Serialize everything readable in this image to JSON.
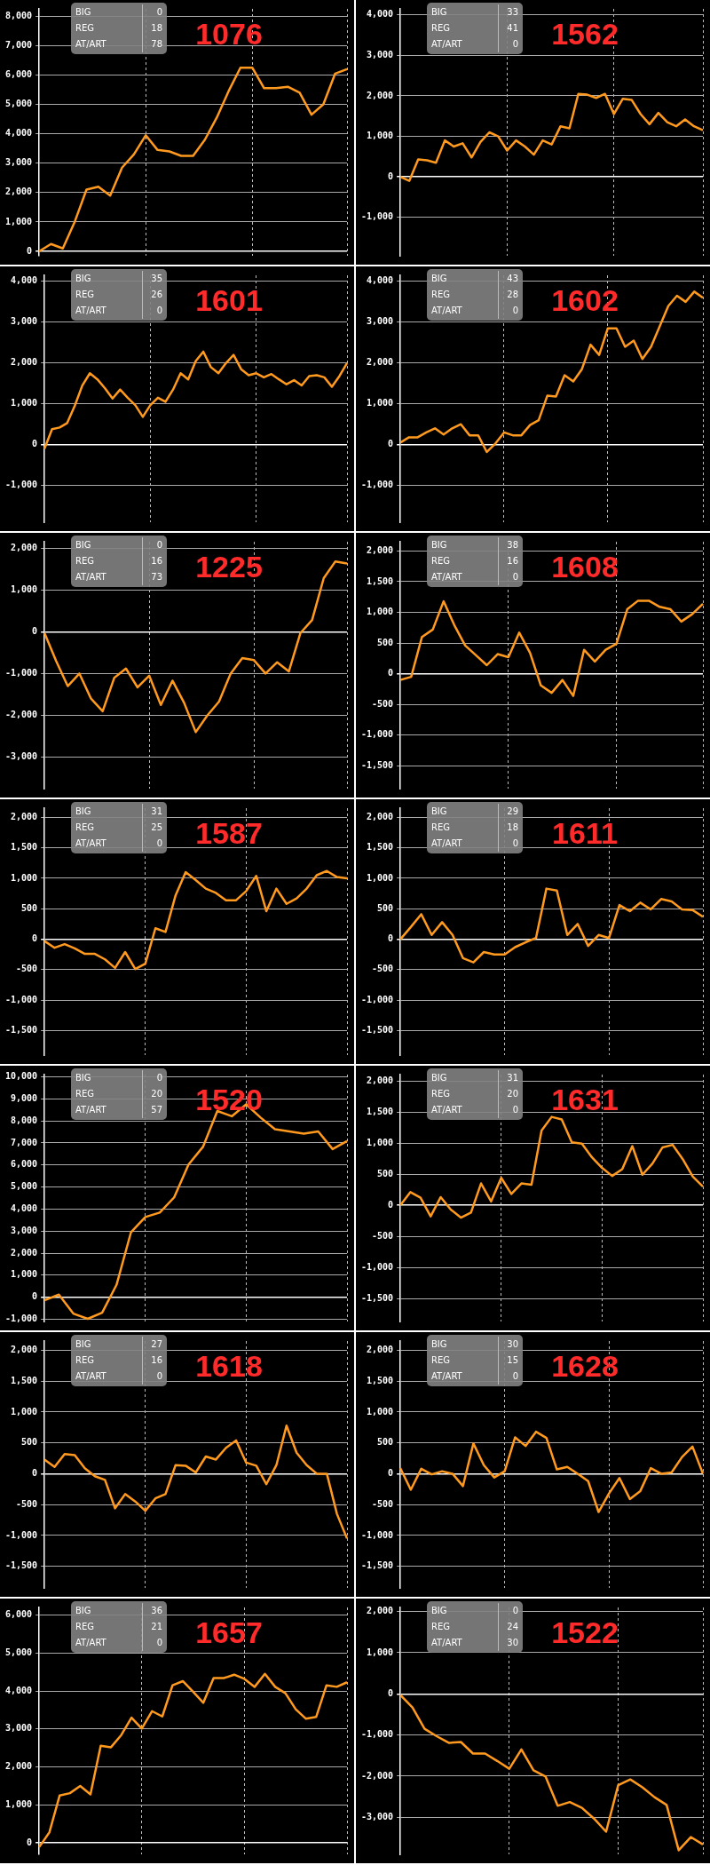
{
  "chart_data": [
    {
      "type": "line",
      "title": "1076",
      "annotations": [
        "BIG",
        "0",
        "REG",
        "18",
        "AT/ART",
        "78"
      ],
      "categories": [
        null,
        null,
        null,
        null,
        null,
        null,
        null,
        null,
        null,
        null,
        null,
        null,
        null,
        null,
        null,
        null,
        null,
        null,
        null,
        null,
        null,
        null,
        null,
        null,
        null,
        null,
        null
      ],
      "series": [
        {
          "color": "#ff9a1f",
          "values": [
            0,
            250,
            100,
            1000,
            2100,
            2200,
            1900,
            2850,
            3300,
            3950,
            3450,
            3400,
            3250,
            3250,
            3800,
            4550,
            5450,
            6250,
            6250,
            5550,
            5550,
            5600,
            5400,
            4650,
            5000,
            6050,
            6200
          ]
        }
      ],
      "ylim": [
        -150,
        8250
      ],
      "yticks": [
        0,
        {
          "value": 1000,
          "label": "1,000"
        },
        {
          "value": 2000,
          "label": "2,000"
        },
        {
          "value": 3000,
          "label": "3,000"
        },
        {
          "value": 4000,
          "label": "4,000"
        },
        {
          "value": 5000,
          "label": "5,000"
        },
        {
          "value": 6000,
          "label": "6,000"
        },
        {
          "value": 7000,
          "label": "7,000"
        },
        {
          "value": 8000,
          "label": "8,000"
        }
      ],
      "grid": true,
      "tick_labels": "y"
    },
    {
      "type": "line",
      "title": "1562",
      "annotations": [
        "BIG",
        "33",
        "REG",
        "41",
        "AT/ART",
        "0"
      ],
      "categories": [
        null,
        null,
        null,
        null,
        null,
        null,
        null,
        null,
        null,
        null,
        null,
        null,
        null,
        null,
        null,
        null,
        null,
        null,
        null,
        null,
        null,
        null,
        null,
        null,
        null,
        null,
        null,
        null,
        null,
        null,
        null,
        null,
        null,
        null,
        null
      ],
      "series": [
        {
          "color": "#ff9a1f",
          "values": [
            0,
            -100,
            430,
            410,
            350,
            900,
            750,
            830,
            480,
            860,
            1100,
            1000,
            650,
            900,
            750,
            550,
            900,
            800,
            1250,
            1200,
            2050,
            2030,
            1950,
            2050,
            1550,
            1930,
            1900,
            1550,
            1300,
            1580,
            1350,
            1250,
            1420,
            1250,
            1150
          ]
        }
      ],
      "ylim": [
        -1950,
        4150
      ],
      "yticks": [
        {
          "value": -1000,
          "label": "-1,000"
        },
        0,
        {
          "value": 1000,
          "label": "1,000"
        },
        {
          "value": 2000,
          "label": "2,000"
        },
        {
          "value": 3000,
          "label": "3,000"
        },
        {
          "value": 4000,
          "label": "4,000"
        }
      ],
      "grid": true,
      "tick_labels": "y"
    },
    {
      "type": "line",
      "title": "1601",
      "annotations": [
        "BIG",
        "35",
        "REG",
        "26",
        "AT/ART",
        "0"
      ],
      "categories": [
        null,
        null,
        null,
        null,
        null,
        null,
        null,
        null,
        null,
        null,
        null,
        null,
        null,
        null,
        null,
        null,
        null,
        null,
        null,
        null,
        null,
        null,
        null,
        null,
        null,
        null,
        null,
        null,
        null,
        null,
        null,
        null,
        null,
        null,
        null,
        null,
        null,
        null,
        null,
        null,
        null
      ],
      "series": [
        {
          "color": "#ff9a1f",
          "values": [
            -100,
            380,
            420,
            530,
            950,
            1450,
            1750,
            1600,
            1380,
            1130,
            1350,
            1150,
            970,
            680,
            970,
            1150,
            1050,
            1350,
            1750,
            1600,
            2050,
            2280,
            1900,
            1750,
            2000,
            2200,
            1850,
            1700,
            1750,
            1650,
            1730,
            1600,
            1480,
            1580,
            1450,
            1680,
            1700,
            1650,
            1420,
            1680,
            2000
          ]
        }
      ],
      "ylim": [
        -1900,
        4150
      ],
      "yticks": [
        {
          "value": -1000,
          "label": "-1,000"
        },
        0,
        {
          "value": 1000,
          "label": "1,000"
        },
        {
          "value": 2000,
          "label": "2,000"
        },
        {
          "value": 3000,
          "label": "3,000"
        },
        {
          "value": 4000,
          "label": "4,000"
        }
      ],
      "grid": true,
      "tick_labels": "y"
    },
    {
      "type": "line",
      "title": "1602",
      "annotations": [
        "BIG",
        "43",
        "REG",
        "28",
        "AT/ART",
        "0"
      ],
      "categories": [
        null,
        null,
        null,
        null,
        null,
        null,
        null,
        null,
        null,
        null,
        null,
        null,
        null,
        null,
        null,
        null,
        null,
        null,
        null,
        null,
        null,
        null,
        null,
        null,
        null,
        null,
        null,
        null,
        null,
        null,
        null,
        null,
        null,
        null,
        null,
        null
      ],
      "series": [
        {
          "color": "#ff9a1f",
          "values": [
            50,
            180,
            180,
            300,
            400,
            250,
            400,
            500,
            230,
            230,
            -180,
            30,
            300,
            230,
            230,
            480,
            600,
            1200,
            1180,
            1700,
            1550,
            1850,
            2450,
            2200,
            2850,
            2850,
            2400,
            2550,
            2100,
            2400,
            2900,
            3400,
            3650,
            3500,
            3750,
            3600
          ]
        }
      ],
      "ylim": [
        -1900,
        4150
      ],
      "yticks": [
        {
          "value": -1000,
          "label": "-1,000"
        },
        0,
        {
          "value": 1000,
          "label": "1,000"
        },
        {
          "value": 2000,
          "label": "2,000"
        },
        {
          "value": 3000,
          "label": "3,000"
        },
        {
          "value": 4000,
          "label": "4,000"
        }
      ],
      "grid": true,
      "tick_labels": "y"
    },
    {
      "type": "line",
      "title": "1225",
      "annotations": [
        "BIG",
        "0",
        "REG",
        "16",
        "AT/ART",
        "73"
      ],
      "categories": [
        null,
        null,
        null,
        null,
        null,
        null,
        null,
        null,
        null,
        null,
        null,
        null,
        null,
        null,
        null,
        null,
        null,
        null,
        null,
        null,
        null,
        null,
        null,
        null,
        null,
        null,
        null
      ],
      "series": [
        {
          "color": "#ff9a1f",
          "values": [
            -30,
            -700,
            -1300,
            -1000,
            -1600,
            -1900,
            -1100,
            -880,
            -1330,
            -1050,
            -1750,
            -1170,
            -1700,
            -2400,
            -2000,
            -1670,
            -1000,
            -630,
            -680,
            -1000,
            -730,
            -950,
            -30,
            280,
            1280,
            1680,
            1630
          ]
        }
      ],
      "ylim": [
        -3750,
        2150
      ],
      "yticks": [
        {
          "value": -3000,
          "label": "-3,000"
        },
        {
          "value": -2000,
          "label": "-2,000"
        },
        {
          "value": -1000,
          "label": "-1,000"
        },
        0,
        {
          "value": 1000,
          "label": "1,000"
        },
        {
          "value": 2000,
          "label": "2,000"
        }
      ],
      "grid": true,
      "tick_labels": "y"
    },
    {
      "type": "line",
      "title": "1608",
      "annotations": [
        "BIG",
        "38",
        "REG",
        "16",
        "AT/ART",
        "0"
      ],
      "categories": [
        null,
        null,
        null,
        null,
        null,
        null,
        null,
        null,
        null,
        null,
        null,
        null,
        null,
        null,
        null,
        null,
        null,
        null,
        null,
        null,
        null,
        null,
        null,
        null,
        null,
        null,
        null,
        null,
        null
      ],
      "series": [
        {
          "color": "#ff9a1f",
          "values": [
            -100,
            -50,
            600,
            720,
            1180,
            790,
            460,
            300,
            140,
            320,
            270,
            670,
            340,
            -190,
            -310,
            -100,
            -360,
            390,
            200,
            390,
            490,
            1050,
            1190,
            1190,
            1090,
            1050,
            850,
            970,
            1140
          ]
        }
      ],
      "ylim": [
        -1870,
        2150
      ],
      "yticks": [
        {
          "value": -1500,
          "label": "-1,500"
        },
        {
          "value": -1000,
          "label": "-1,000"
        },
        -500,
        0,
        500,
        {
          "value": 1000,
          "label": "1,000"
        },
        {
          "value": 1500,
          "label": "1,500"
        },
        {
          "value": 2000,
          "label": "2,000"
        }
      ],
      "grid": true,
      "tick_labels": "y"
    },
    {
      "type": "line",
      "title": "1587",
      "annotations": [
        "BIG",
        "31",
        "REG",
        "25",
        "AT/ART",
        "0"
      ],
      "categories": [
        null,
        null,
        null,
        null,
        null,
        null,
        null,
        null,
        null,
        null,
        null,
        null,
        null,
        null,
        null,
        null,
        null,
        null,
        null,
        null,
        null,
        null,
        null,
        null,
        null,
        null,
        null,
        null,
        null,
        null,
        null
      ],
      "series": [
        {
          "color": "#ff9a1f",
          "values": [
            -30,
            -140,
            -80,
            -150,
            -240,
            -240,
            -330,
            -470,
            -210,
            -490,
            -400,
            180,
            120,
            720,
            1100,
            970,
            830,
            760,
            640,
            640,
            790,
            1040,
            460,
            830,
            580,
            670,
            830,
            1050,
            1120,
            1020,
            1000
          ]
        }
      ],
      "ylim": [
        -1900,
        2150
      ],
      "yticks": [
        {
          "value": -1500,
          "label": "-1,500"
        },
        {
          "value": -1000,
          "label": "-1,000"
        },
        -500,
        0,
        500,
        {
          "value": 1000,
          "label": "1,000"
        },
        {
          "value": 1500,
          "label": "1,500"
        },
        {
          "value": 2000,
          "label": "2,000"
        }
      ],
      "grid": true,
      "tick_labels": "y"
    },
    {
      "type": "line",
      "title": "1611",
      "annotations": [
        "BIG",
        "29",
        "REG",
        "18",
        "AT/ART",
        "0"
      ],
      "categories": [
        null,
        null,
        null,
        null,
        null,
        null,
        null,
        null,
        null,
        null,
        null,
        null,
        null,
        null,
        null,
        null,
        null,
        null,
        null,
        null,
        null,
        null,
        null,
        null,
        null,
        null,
        null,
        null,
        null,
        null
      ],
      "series": [
        {
          "color": "#ff9a1f",
          "values": [
            0,
            200,
            410,
            70,
            280,
            70,
            -310,
            -380,
            -210,
            -250,
            -250,
            -130,
            -50,
            20,
            830,
            800,
            70,
            250,
            -110,
            70,
            20,
            560,
            460,
            600,
            490,
            660,
            620,
            490,
            480,
            370
          ]
        }
      ],
      "ylim": [
        -1900,
        2150
      ],
      "yticks": [
        {
          "value": -1500,
          "label": "-1,500"
        },
        {
          "value": -1000,
          "label": "-1,000"
        },
        -500,
        0,
        500,
        {
          "value": 1000,
          "label": "1,000"
        },
        {
          "value": 1500,
          "label": "1,500"
        },
        {
          "value": 2000,
          "label": "2,000"
        }
      ],
      "grid": true,
      "tick_labels": "y"
    },
    {
      "type": "line",
      "title": "1520",
      "annotations": [
        "BIG",
        "0",
        "REG",
        "20",
        "AT/ART",
        "57"
      ],
      "categories": [
        null,
        null,
        null,
        null,
        null,
        null,
        null,
        null,
        null,
        null,
        null,
        null,
        null,
        null,
        null,
        null,
        null,
        null,
        null,
        null,
        null,
        null
      ],
      "series": [
        {
          "color": "#ff9a1f",
          "values": [
            -140,
            120,
            -740,
            -980,
            -700,
            560,
            2940,
            3640,
            3840,
            4530,
            6020,
            6820,
            8450,
            8210,
            8750,
            8150,
            7620,
            7520,
            7420,
            7520,
            6720,
            7080
          ]
        }
      ],
      "ylim": [
        -1100,
        10100
      ],
      "yticks": [
        {
          "value": -1000,
          "label": "-1,000"
        },
        0,
        {
          "value": 1000,
          "label": "1,000"
        },
        {
          "value": 2000,
          "label": "2,000"
        },
        {
          "value": 3000,
          "label": "3,000"
        },
        {
          "value": 4000,
          "label": "4,000"
        },
        {
          "value": 5000,
          "label": "5,000"
        },
        {
          "value": 6000,
          "label": "6,000"
        },
        {
          "value": 7000,
          "label": "7,000"
        },
        {
          "value": 8000,
          "label": "8,000"
        },
        {
          "value": 9000,
          "label": "9,000"
        },
        {
          "value": 10000,
          "label": "10,000"
        }
      ],
      "grid": true,
      "tick_labels": "y"
    },
    {
      "type": "line",
      "title": "1631",
      "annotations": [
        "BIG",
        "31",
        "REG",
        "20",
        "AT/ART",
        "0"
      ],
      "categories": [
        null,
        null,
        null,
        null,
        null,
        null,
        null,
        null,
        null,
        null,
        null,
        null,
        null,
        null,
        null,
        null,
        null,
        null,
        null,
        null,
        null,
        null,
        null,
        null,
        null,
        null,
        null,
        null,
        null,
        null,
        null
      ],
      "series": [
        {
          "color": "#ff9a1f",
          "values": [
            0,
            210,
            120,
            -180,
            130,
            -70,
            -200,
            -120,
            350,
            60,
            440,
            180,
            350,
            330,
            1200,
            1420,
            1380,
            1010,
            990,
            770,
            600,
            470,
            580,
            950,
            490,
            670,
            930,
            970,
            740,
            460,
            300
          ]
        }
      ],
      "ylim": [
        -1870,
        2100
      ],
      "yticks": [
        {
          "value": -1500,
          "label": "-1,500"
        },
        {
          "value": -1000,
          "label": "-1,000"
        },
        -500,
        0,
        500,
        {
          "value": 1000,
          "label": "1,000"
        },
        {
          "value": 1500,
          "label": "1,500"
        },
        {
          "value": 2000,
          "label": "2,000"
        }
      ],
      "grid": true,
      "tick_labels": "y"
    },
    {
      "type": "line",
      "title": "1618",
      "annotations": [
        "BIG",
        "27",
        "REG",
        "16",
        "AT/ART",
        "0"
      ],
      "categories": [
        null,
        null,
        null,
        null,
        null,
        null,
        null,
        null,
        null,
        null,
        null,
        null,
        null,
        null,
        null,
        null,
        null,
        null,
        null,
        null,
        null,
        null,
        null,
        null,
        null,
        null,
        null,
        null,
        null,
        null,
        null
      ],
      "series": [
        {
          "color": "#ff9a1f",
          "values": [
            230,
            110,
            320,
            300,
            90,
            -40,
            -100,
            -560,
            -330,
            -450,
            -600,
            -400,
            -330,
            140,
            130,
            20,
            280,
            230,
            420,
            540,
            180,
            130,
            -170,
            140,
            780,
            340,
            140,
            0,
            0,
            -650,
            -1050
          ]
        }
      ],
      "ylim": [
        -1850,
        2150
      ],
      "yticks": [
        {
          "value": -1500,
          "label": "-1,500"
        },
        {
          "value": -1000,
          "label": "-1,000"
        },
        -500,
        0,
        500,
        {
          "value": 1000,
          "label": "1,000"
        },
        {
          "value": 1500,
          "label": "1,500"
        },
        {
          "value": 2000,
          "label": "2,000"
        }
      ],
      "grid": true,
      "tick_labels": "y"
    },
    {
      "type": "line",
      "title": "1628",
      "annotations": [
        "BIG",
        "30",
        "REG",
        "15",
        "AT/ART",
        "0"
      ],
      "categories": [
        null,
        null,
        null,
        null,
        null,
        null,
        null,
        null,
        null,
        null,
        null,
        null,
        null,
        null,
        null,
        null,
        null,
        null,
        null,
        null,
        null,
        null,
        null,
        null,
        null,
        null,
        null,
        null,
        null,
        null
      ],
      "series": [
        {
          "color": "#ff9a1f",
          "values": [
            90,
            -260,
            80,
            -10,
            40,
            0,
            -200,
            490,
            140,
            -60,
            40,
            590,
            450,
            680,
            580,
            70,
            110,
            0,
            -120,
            -620,
            -320,
            -70,
            -410,
            -280,
            90,
            0,
            20,
            270,
            440,
            0
          ]
        }
      ],
      "ylim": [
        -1850,
        2150
      ],
      "yticks": [
        {
          "value": -1500,
          "label": "-1,500"
        },
        {
          "value": -1000,
          "label": "-1,000"
        },
        -500,
        0,
        500,
        {
          "value": 1000,
          "label": "1,000"
        },
        {
          "value": 1500,
          "label": "1,500"
        },
        {
          "value": 2000,
          "label": "2,000"
        }
      ],
      "grid": true,
      "tick_labels": "y"
    },
    {
      "type": "line",
      "title": "1657",
      "annotations": [
        "BIG",
        "36",
        "REG",
        "21",
        "AT/ART",
        "0"
      ],
      "categories": [
        null,
        null,
        null,
        null,
        null,
        null,
        null,
        null,
        null,
        null,
        null,
        null,
        null,
        null,
        null,
        null,
        null,
        null,
        null,
        null,
        null,
        null,
        null,
        null,
        null,
        null,
        null,
        null,
        null,
        null,
        null
      ],
      "series": [
        {
          "color": "#ff9a1f",
          "values": [
            -110,
            280,
            1250,
            1310,
            1500,
            1280,
            2560,
            2520,
            2840,
            3300,
            3010,
            3470,
            3330,
            4150,
            4260,
            3980,
            3690,
            4340,
            4340,
            4430,
            4320,
            4110,
            4450,
            4110,
            3940,
            3520,
            3270,
            3320,
            4150,
            4110,
            4230
          ]
        }
      ],
      "ylim": [
        -300,
        6200
      ],
      "yticks": [
        0,
        {
          "value": 1000,
          "label": "1,000"
        },
        {
          "value": 2000,
          "label": "2,000"
        },
        {
          "value": 3000,
          "label": "3,000"
        },
        {
          "value": 4000,
          "label": "4,000"
        },
        {
          "value": 5000,
          "label": "5,000"
        },
        {
          "value": 6000,
          "label": "6,000"
        }
      ],
      "grid": true,
      "tick_labels": "y"
    },
    {
      "type": "line",
      "title": "1522",
      "annotations": [
        "BIG",
        "0",
        "REG",
        "24",
        "AT/ART",
        "30"
      ],
      "categories": [
        null,
        null,
        null,
        null,
        null,
        null,
        null,
        null,
        null,
        null,
        null,
        null,
        null,
        null,
        null,
        null,
        null,
        null,
        null,
        null,
        null,
        null,
        null,
        null,
        null,
        null
      ],
      "series": [
        {
          "color": "#ff9a1f",
          "values": [
            -30,
            -330,
            -850,
            -1030,
            -1190,
            -1170,
            -1450,
            -1450,
            -1630,
            -1820,
            -1350,
            -1860,
            -2010,
            -2720,
            -2630,
            -2770,
            -3030,
            -3350,
            -2220,
            -2080,
            -2270,
            -2510,
            -2700,
            -3800,
            -3480,
            -3660
          ]
        }
      ],
      "ylim": [
        -3900,
        2100
      ],
      "yticks": [
        {
          "value": -3000,
          "label": "-3,000"
        },
        {
          "value": -2000,
          "label": "-2,000"
        },
        {
          "value": -1000,
          "label": "-1,000"
        },
        0,
        {
          "value": 1000,
          "label": "1,000"
        },
        {
          "value": 2000,
          "label": "2,000"
        }
      ],
      "grid": true,
      "tick_labels": "y"
    }
  ]
}
